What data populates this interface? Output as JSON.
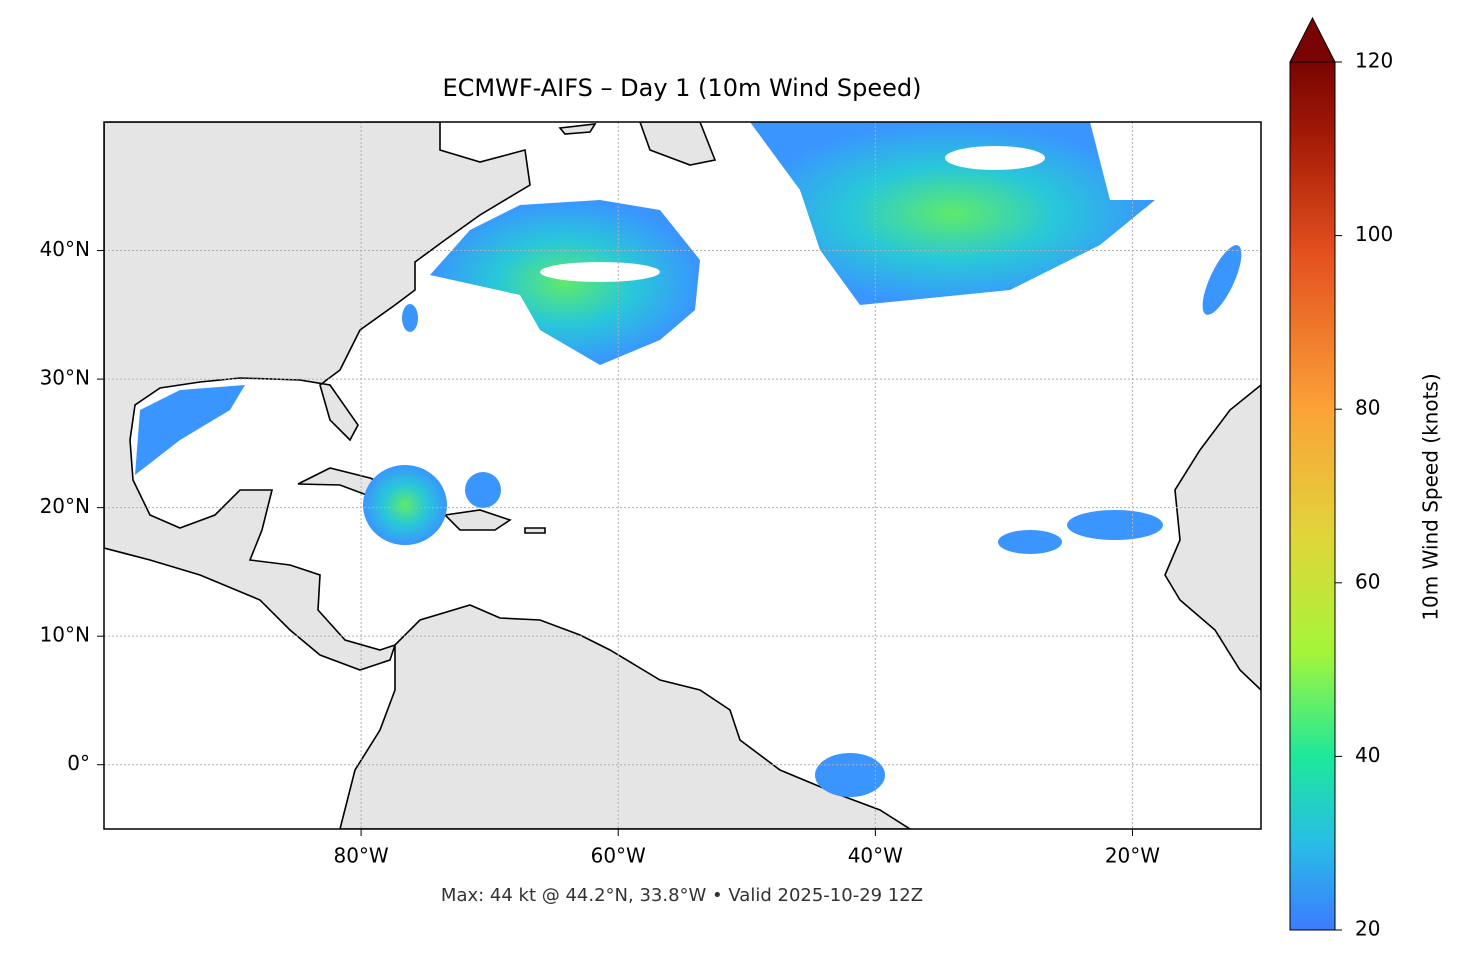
{
  "chart_data": {
    "type": "map",
    "title": "ECMWF-AIFS – Day 1 (10m Wind Speed)",
    "xlim": [
      -100,
      -10
    ],
    "ylim": [
      -5,
      50
    ],
    "xticks": [
      {
        "value": -80,
        "label": "80°W"
      },
      {
        "value": -60,
        "label": "60°W"
      },
      {
        "value": -40,
        "label": "40°W"
      },
      {
        "value": -20,
        "label": "20°W"
      }
    ],
    "yticks": [
      {
        "value": 0,
        "label": "0°"
      },
      {
        "value": 10,
        "label": "10°N"
      },
      {
        "value": 20,
        "label": "20°N"
      },
      {
        "value": 30,
        "label": "30°N"
      },
      {
        "value": 40,
        "label": "40°N"
      }
    ],
    "grid": true,
    "colorbar": {
      "label": "10m Wind Speed (knots)",
      "lim": [
        20,
        120
      ],
      "ticks": [
        20,
        40,
        60,
        80,
        100,
        120
      ],
      "extend": "max"
    },
    "footer": "Max: 44 kt @ 44.2°N, 33.8°W • Valid 2025-10-29 12Z"
  }
}
